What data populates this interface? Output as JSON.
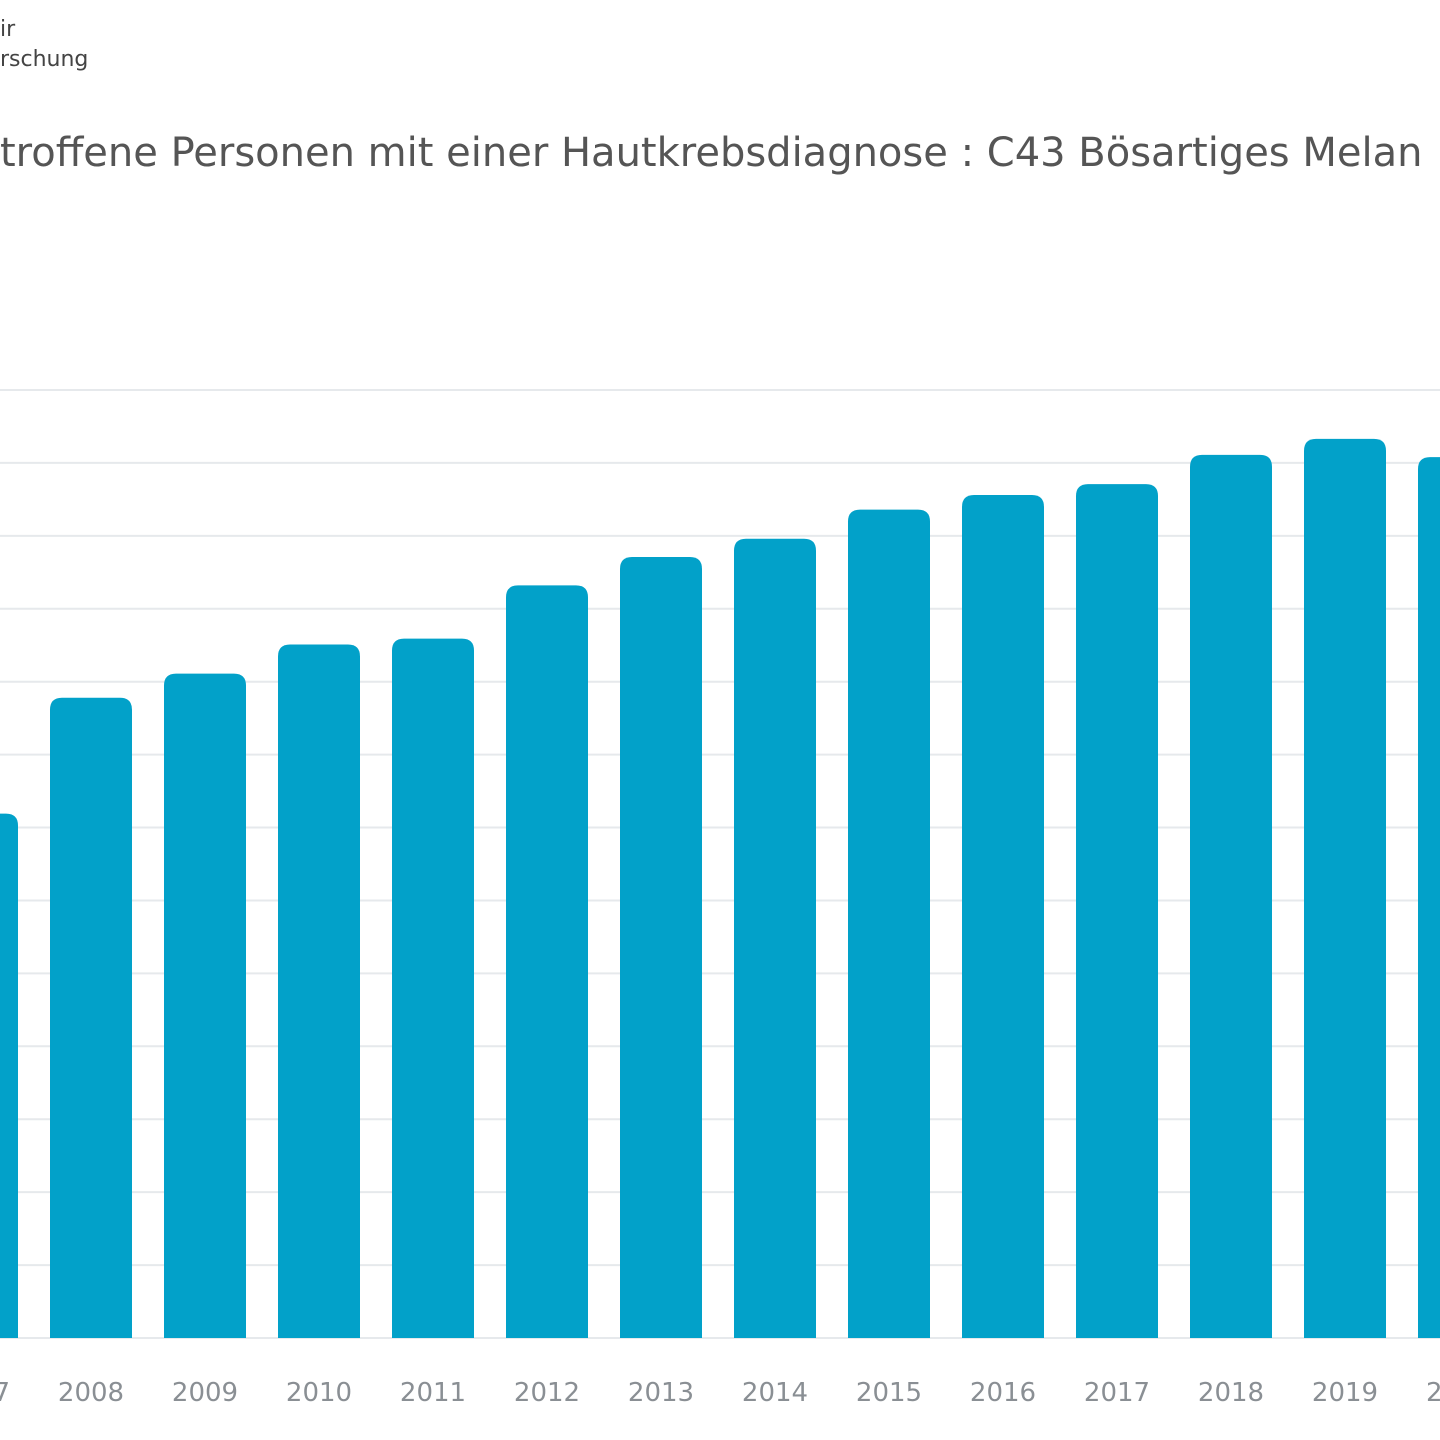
{
  "header": {
    "logo_lines": [
      "ir",
      "rschung"
    ]
  },
  "chart_data": {
    "type": "bar",
    "title": "troffene Personen mit einer Hautkrebsdiagnose : C43 Bösartiges Melan",
    "categories": [
      "7",
      "2008",
      "2009",
      "2010",
      "2011",
      "2012",
      "2013",
      "2014",
      "2015",
      "2016",
      "2017",
      "2018",
      "2019",
      "2"
    ],
    "values": [
      7.19,
      8.78,
      9.11,
      9.51,
      9.59,
      10.32,
      10.71,
      10.96,
      11.36,
      11.56,
      11.71,
      12.11,
      12.33,
      12.08
    ],
    "color": "#02a1c9",
    "ylim": [
      0,
      13
    ],
    "yticks": [
      0,
      1,
      2,
      3,
      4,
      5,
      6,
      7,
      8,
      9,
      10,
      11,
      12,
      13
    ],
    "grid": true
  }
}
